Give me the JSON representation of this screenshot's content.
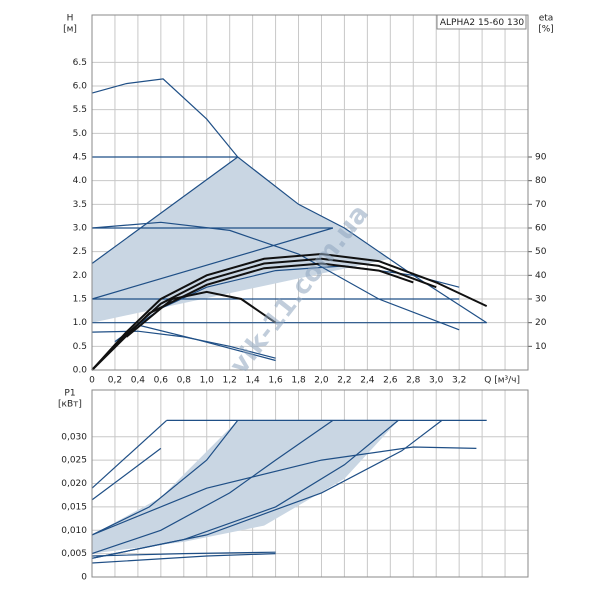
{
  "chart_data": [
    {
      "type": "line",
      "title": "ALPHA2 15-60 130",
      "y_label": "H",
      "y_unit": "[м]",
      "y2_label": "eta",
      "y2_unit": "[%]",
      "x_label": "Q [м³/ч]",
      "watermark": "vik-11.com.ua",
      "xlim": [
        0,
        3.8
      ],
      "ylim": [
        0,
        7.5
      ],
      "y2lim": [
        0,
        150
      ],
      "grid": true,
      "xticks": [
        0,
        {
          "value": 0.2,
          "label": "0,2"
        },
        {
          "value": 0.4,
          "label": "0,4"
        },
        {
          "value": 0.6,
          "label": "0,6"
        },
        {
          "value": 0.8,
          "label": "0,8"
        },
        {
          "value": 1.0,
          "label": "1,0"
        },
        {
          "value": 1.2,
          "label": "1,2"
        },
        {
          "value": 1.4,
          "label": "1,4"
        },
        {
          "value": 1.6,
          "label": "1,6"
        },
        {
          "value": 1.8,
          "label": "1,8"
        },
        {
          "value": 2.0,
          "label": "2,0"
        },
        {
          "value": 2.2,
          "label": "2,2"
        },
        {
          "value": 2.4,
          "label": "2,4"
        },
        {
          "value": 2.6,
          "label": "2,6"
        },
        {
          "value": 2.8,
          "label": "2,8"
        },
        {
          "value": 3.0,
          "label": "3,0"
        },
        {
          "value": 3.2,
          "label": "3,2"
        }
      ],
      "xgrid": [
        3.4,
        3.6
      ],
      "yticks": [
        {
          "value": 0,
          "label": "0.0"
        },
        0.5,
        {
          "value": 1,
          "label": "1.0"
        },
        1.5,
        {
          "value": 2,
          "label": "2.0"
        },
        2.5,
        {
          "value": 3,
          "label": "3.0"
        },
        3.5,
        {
          "value": 4,
          "label": "4.0"
        },
        4.5,
        {
          "value": 5,
          "label": "5.0"
        },
        5.5,
        {
          "value": 6,
          "label": "6.0"
        },
        6.5
      ],
      "y2ticks": [
        10,
        20,
        30,
        40,
        50,
        60,
        70,
        80,
        90
      ],
      "areas": [
        {
          "color": "#c9d6e3",
          "x": [
            0,
            0,
            1.27,
            1.8,
            2.2,
            2.6,
            0
          ],
          "values": [
            1.0,
            2.25,
            4.5,
            3.5,
            3.0,
            2.35,
            1.0
          ]
        }
      ],
      "series": [
        {
          "color": "#1f4f86",
          "x": [
            0,
            0.3,
            0.62,
            1.0,
            1.27,
            1.8,
            2.2,
            2.8,
            3.44
          ],
          "values": [
            5.85,
            6.05,
            6.15,
            5.3,
            4.5,
            3.5,
            3.0,
            2.0,
            1.0
          ]
        },
        {
          "color": "#1f4f86",
          "x": [
            0,
            1.27
          ],
          "values": [
            4.5,
            4.5
          ]
        },
        {
          "color": "#1f4f86",
          "x": [
            0,
            2.1
          ],
          "values": [
            3.0,
            3.0
          ]
        },
        {
          "color": "#1f4f86",
          "x": [
            0,
            3.2
          ],
          "values": [
            1.5,
            1.5
          ]
        },
        {
          "color": "#1f4f86",
          "x": [
            0,
            1.27
          ],
          "values": [
            2.25,
            4.5
          ]
        },
        {
          "color": "#1f4f86",
          "x": [
            0,
            2.1
          ],
          "values": [
            1.5,
            3.0
          ]
        },
        {
          "color": "#1f4f86",
          "x": [
            0,
            3.44
          ],
          "values": [
            1.0,
            1.0
          ]
        },
        {
          "color": "#1f4f86",
          "x": [
            0,
            0.6,
            1.2,
            1.8,
            2.5,
            3.2
          ],
          "values": [
            3.0,
            3.12,
            2.95,
            2.45,
            1.5,
            0.85
          ]
        },
        {
          "color": "#1f4f86",
          "x": [
            0,
            0.4,
            0.8,
            1.2,
            1.6
          ],
          "values": [
            0.8,
            0.82,
            0.7,
            0.5,
            0.25
          ]
        },
        {
          "color": "#1f4f86",
          "x": [
            0.4,
            0.9,
            1.6
          ],
          "values": [
            0.95,
            0.65,
            0.2
          ]
        },
        {
          "color": "#1f4f86",
          "axis": "y2",
          "x": [
            0.2,
            0.6,
            1.0,
            1.6,
            2.2,
            2.8,
            3.2
          ],
          "values": [
            12,
            26,
            35,
            42,
            44,
            40,
            35
          ]
        },
        {
          "color": "#111111",
          "x": [
            0,
            0.3,
            0.6,
            1.0,
            1.5,
            2.0,
            2.5,
            3.0,
            3.44
          ],
          "values": [
            0,
            0.8,
            1.5,
            2.0,
            2.35,
            2.45,
            2.3,
            1.85,
            1.35
          ]
        },
        {
          "color": "#111111",
          "x": [
            0,
            0.3,
            0.6,
            1.0,
            1.5,
            2.0,
            2.5,
            3.0
          ],
          "values": [
            0,
            0.75,
            1.4,
            1.9,
            2.25,
            2.35,
            2.2,
            1.75
          ]
        },
        {
          "color": "#111111",
          "x": [
            0,
            0.5,
            1.0,
            1.5,
            2.0,
            2.5,
            2.8
          ],
          "values": [
            0,
            1.2,
            1.8,
            2.15,
            2.25,
            2.1,
            1.85
          ]
        },
        {
          "color": "#111111",
          "x": [
            0.3,
            0.7,
            1.0,
            1.3,
            1.6
          ],
          "values": [
            0.7,
            1.5,
            1.65,
            1.5,
            1.0
          ]
        }
      ]
    },
    {
      "type": "line",
      "y_label": "P1",
      "y_unit": "[кВт]",
      "xlim": [
        0,
        3.8
      ],
      "ylim": [
        0,
        0.04
      ],
      "grid": true,
      "show_xtick_labels": false,
      "xticks": [
        0,
        0.2,
        0.4,
        0.6,
        0.8,
        1.0,
        1.2,
        1.4,
        1.6,
        1.8,
        2.0,
        2.2,
        2.4,
        2.6,
        2.8,
        3.0,
        3.2,
        3.4,
        3.6
      ],
      "yticks": [
        0,
        {
          "value": 0.005,
          "label": "0,005"
        },
        {
          "value": 0.01,
          "label": "0,010"
        },
        {
          "value": 0.015,
          "label": "0,015"
        },
        {
          "value": 0.02,
          "label": "0,020"
        },
        {
          "value": 0.025,
          "label": "0,025"
        },
        {
          "value": 0.03,
          "label": "0,030"
        }
      ],
      "areas": [
        {
          "color": "#c9d6e3",
          "x": [
            0,
            0,
            0.6,
            1.27,
            2.67,
            2.2,
            1.5,
            0.8,
            0
          ],
          "values": [
            0.005,
            0.009,
            0.017,
            0.0335,
            0.0335,
            0.021,
            0.011,
            0.0075,
            0.005
          ]
        }
      ],
      "series": [
        {
          "color": "#1f4f86",
          "x": [
            0.65,
            3.44
          ],
          "values": [
            0.0335,
            0.0335
          ]
        },
        {
          "color": "#1f4f86",
          "x": [
            0,
            0.65
          ],
          "values": [
            0.019,
            0.0335
          ]
        },
        {
          "color": "#1f4f86",
          "x": [
            0,
            0.6
          ],
          "values": [
            0.0165,
            0.0275
          ]
        },
        {
          "color": "#1f4f86",
          "x": [
            0,
            0.5,
            1.0,
            1.27
          ],
          "values": [
            0.009,
            0.015,
            0.025,
            0.0335
          ]
        },
        {
          "color": "#1f4f86",
          "x": [
            0,
            0.6,
            1.2,
            1.6,
            2.1
          ],
          "values": [
            0.005,
            0.01,
            0.018,
            0.025,
            0.0335
          ]
        },
        {
          "color": "#1f4f86",
          "x": [
            0,
            0.8,
            1.6,
            2.2,
            2.67
          ],
          "values": [
            0.004,
            0.008,
            0.015,
            0.024,
            0.0335
          ]
        },
        {
          "color": "#1f4f86",
          "x": [
            0,
            1.0,
            2.0,
            2.7,
            3.05
          ],
          "values": [
            0.004,
            0.009,
            0.018,
            0.027,
            0.0335
          ]
        },
        {
          "color": "#1f4f86",
          "x": [
            0,
            1.0,
            2.0,
            2.8,
            3.35
          ],
          "values": [
            0.009,
            0.019,
            0.025,
            0.0278,
            0.0275
          ]
        },
        {
          "color": "#1f4f86",
          "x": [
            0,
            0.8,
            1.6
          ],
          "values": [
            0.0045,
            0.005,
            0.0053
          ]
        },
        {
          "color": "#1f4f86",
          "x": [
            0,
            1.0,
            1.6
          ],
          "values": [
            0.003,
            0.0045,
            0.005
          ]
        }
      ]
    }
  ]
}
